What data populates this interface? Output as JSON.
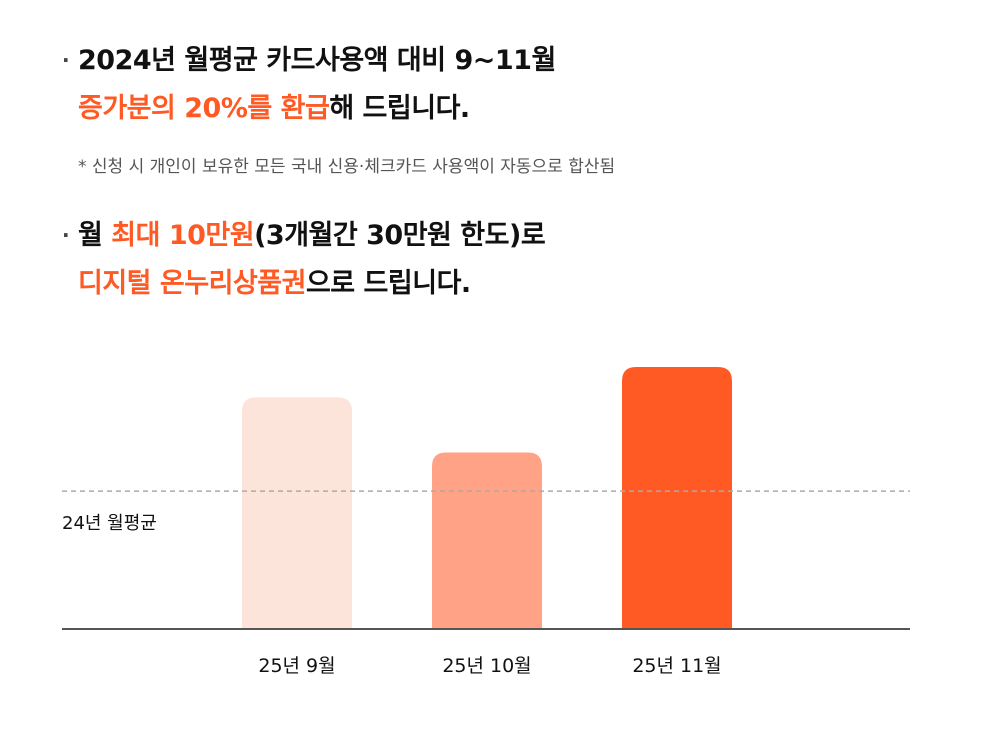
{
  "headline1": {
    "line1": "2024년 월평균 카드사용액 대비 9~11월",
    "line2_highlight": "증가분의 20%를 환급",
    "line2_rest": "해 드립니다."
  },
  "note": "* 신청 시 개인이 보유한 모든 국내 신용·체크카드 사용액이 자동으로 합산됨",
  "headline2": {
    "line1_prefix": "월 ",
    "line1_highlight": "최대 10만원",
    "line1_rest": "(3개월간 30만원 한도)로",
    "line2_highlight": "디지털 온누리상품권",
    "line2_rest": "으로 드립니다."
  },
  "chart_data": {
    "type": "bar",
    "categories": [
      "25년 9월",
      "25년 10월",
      "25년 11월"
    ],
    "values": [
      1.68,
      1.28,
      1.9
    ],
    "reference_line": {
      "label": "24년 월평균",
      "value": 1.0
    },
    "ylim": [
      0,
      1.9
    ],
    "colors": [
      "#fde4da",
      "#ffa285",
      "#ff5a24"
    ],
    "grid": false,
    "legend": "none"
  }
}
